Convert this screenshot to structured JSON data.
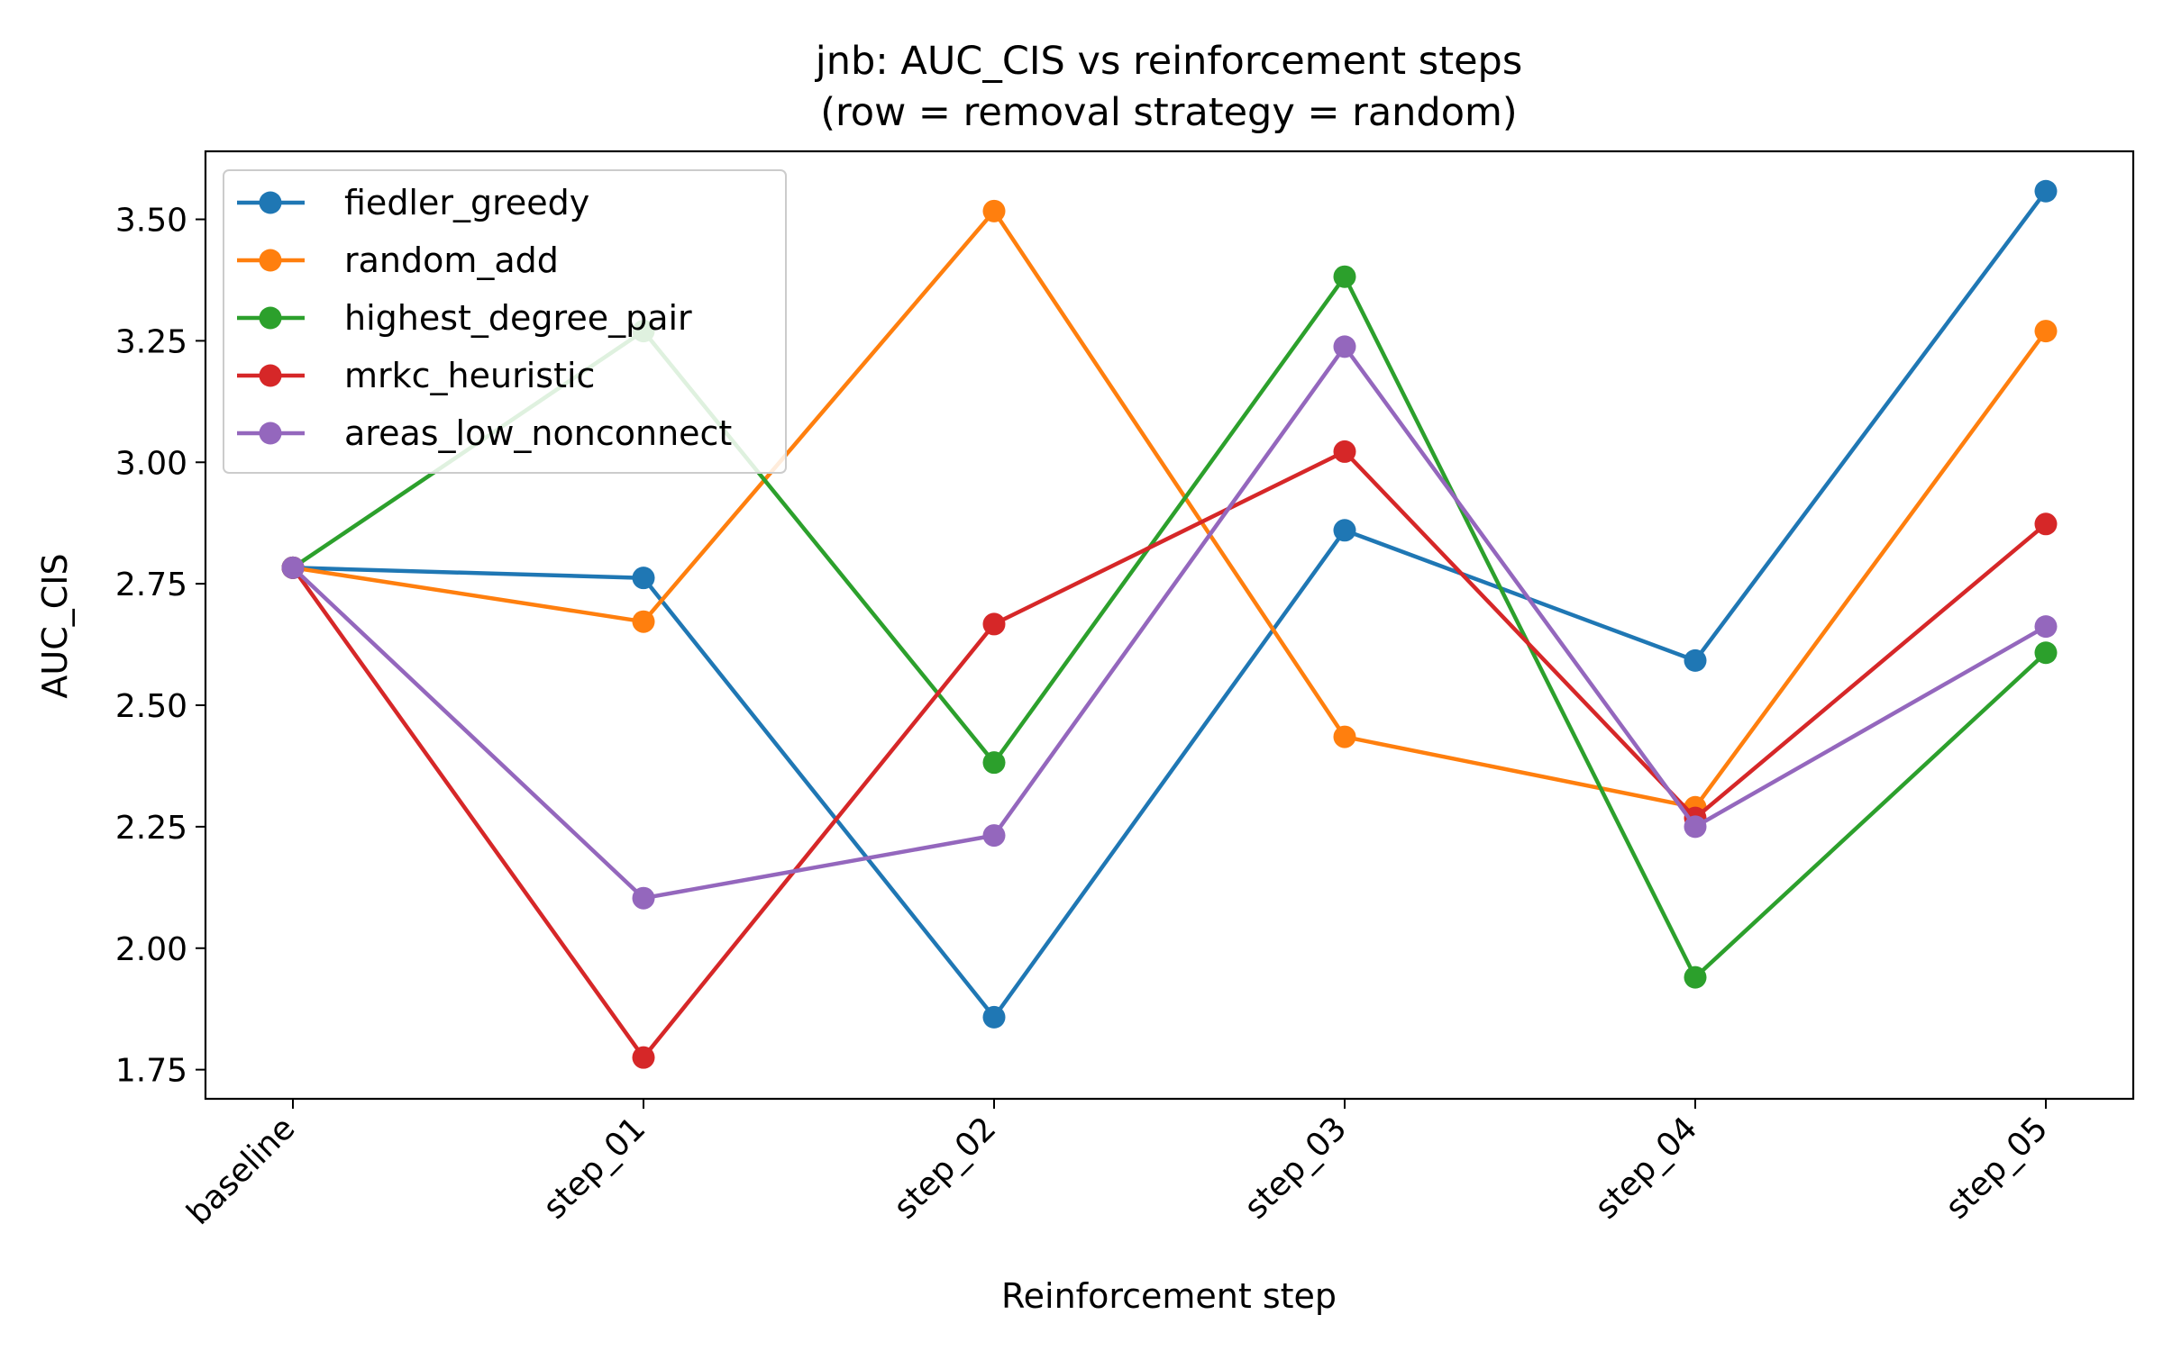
{
  "chart_data": {
    "type": "line",
    "title_line1": "jnb: AUC_CIS vs reinforcement steps",
    "title_line2": "(row = removal strategy = random)",
    "xlabel": "Reinforcement step",
    "ylabel": "AUC_CIS",
    "categories": [
      "baseline",
      "step_01",
      "step_02",
      "step_03",
      "step_04",
      "step_05"
    ],
    "ylim": [
      1.69,
      3.64
    ],
    "yticks": [
      1.75,
      2.0,
      2.25,
      2.5,
      2.75,
      3.0,
      3.25,
      3.5
    ],
    "ytick_labels": [
      "1.75",
      "2.00",
      "2.25",
      "2.50",
      "2.75",
      "3.00",
      "3.25",
      "3.50"
    ],
    "grid": false,
    "legend_position": "top-left",
    "series": [
      {
        "name": "fiedler_greedy",
        "color": "#1f77b4",
        "values": [
          2.783,
          2.762,
          1.858,
          2.86,
          2.592,
          3.558
        ]
      },
      {
        "name": "random_add",
        "color": "#ff7f0e",
        "values": [
          2.783,
          2.672,
          3.517,
          2.435,
          2.29,
          3.27
        ]
      },
      {
        "name": "highest_degree_pair",
        "color": "#2ca02c",
        "values": [
          2.783,
          3.27,
          2.382,
          3.382,
          1.94,
          2.608
        ]
      },
      {
        "name": "mrkc_heuristic",
        "color": "#d62728",
        "values": [
          2.783,
          1.775,
          2.667,
          3.022,
          2.268,
          2.873
        ]
      },
      {
        "name": "areas_low_nonconnect",
        "color": "#9467bd",
        "values": [
          2.783,
          2.103,
          2.232,
          3.238,
          2.25,
          2.662
        ]
      }
    ]
  }
}
